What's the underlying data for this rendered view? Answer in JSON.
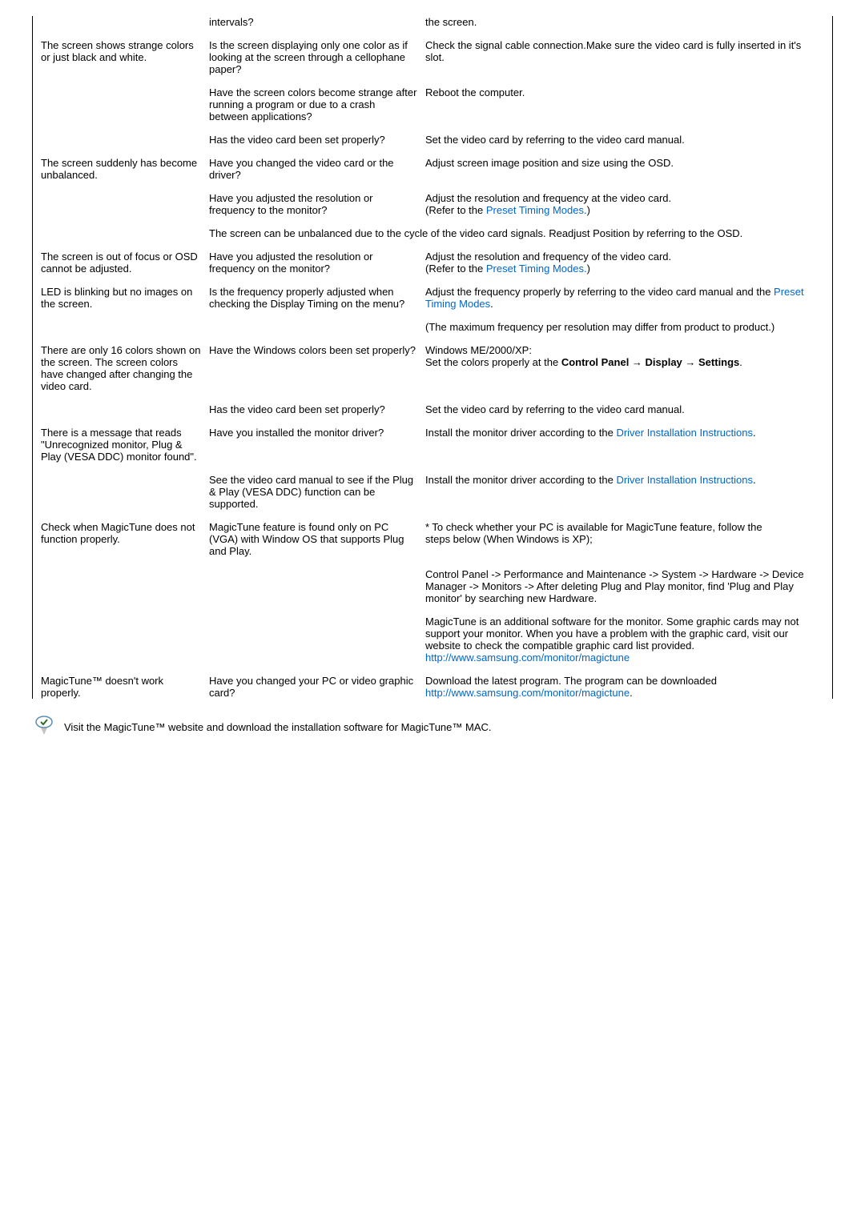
{
  "rows": [
    {
      "problem": "",
      "cause": "intervals?",
      "solution": "the screen."
    },
    {
      "problem": "The screen shows strange colors or just black and white.",
      "cause": "Is the screen displaying only one color as if looking at the screen through a cellophane paper?",
      "solution": "Check the signal cable connection.Make sure the video card is fully inserted in it's slot."
    },
    {
      "problem": "",
      "cause": "Have the screen colors become strange after running a program or due to a crash between applications?",
      "solution": "Reboot the computer."
    },
    {
      "problem": "",
      "cause": "Has the video card been set properly?",
      "solution": "Set the video card by referring to the video card manual."
    },
    {
      "problem": "The screen suddenly has become unbalanced.",
      "cause": "Have you changed the video card or the driver?",
      "solution": "Adjust screen image position and size using the OSD."
    },
    {
      "problem": "",
      "cause": "Have you adjusted the resolution or frequency to the monitor?",
      "solution": "Adjust the resolution and frequency at the video card.\n(Refer to the {link:Preset Timing Modes.})"
    },
    {
      "problem": "",
      "full": "The screen can be unbalanced due to the cycle of the video card signals. Readjust Position by referring to the OSD."
    },
    {
      "problem": "The screen is out of focus or OSD cannot be adjusted.",
      "cause": "Have you adjusted the resolution or frequency on the monitor?",
      "solution": "Adjust the resolution and frequency of the video card.\n(Refer to the {link:Preset Timing Modes.})"
    },
    {
      "problem": "LED is blinking but no images on the screen.",
      "cause": "Is the frequency properly adjusted when checking the Display Timing on the menu?",
      "solution": "Adjust the frequency properly by referring to the video card manual and the {link:Preset Timing Modes}."
    },
    {
      "problem": "",
      "cause": "",
      "solution": "(The maximum frequency per resolution may differ from product to product.)"
    },
    {
      "problem": "There are only 16 colors shown on the screen. The screen colors have changed after changing the video card.",
      "cause": "Have the Windows colors been set properly?",
      "solution": "Windows ME/2000/XP:\nSet the colors properly at the {bold:Control Panel → Display → Settings}."
    },
    {
      "problem": "",
      "cause": "Has the video card been set properly?",
      "solution": "Set the video card by referring to the video card manual."
    },
    {
      "problem": "There is a message that reads \"Unrecognized monitor, Plug & Play (VESA DDC) monitor found\".",
      "cause": "Have you installed the monitor driver?",
      "solution": "Install the monitor driver according to the {link:Driver Installation Instructions}."
    },
    {
      "problem": "",
      "cause": "See the video card manual to see if the Plug & Play (VESA DDC) function can be supported.",
      "solution": "Install the monitor driver according to the {link:Driver Installation Instructions}."
    },
    {
      "problem": "Check when MagicTune does not function properly.",
      "cause": "MagicTune feature is found only on PC (VGA) with Window OS that supports Plug and Play.",
      "solution": "* To check whether your PC is available for MagicTune feature, follow the\n steps below (When Windows is XP);"
    },
    {
      "problem": "",
      "cause": "",
      "solution": "Control Panel -> Performance and Maintenance -> System -> Hardware -> Device Manager -> Monitors -> After deleting Plug and Play monitor, find 'Plug and Play monitor' by searching new Hardware."
    },
    {
      "problem": "",
      "cause": "",
      "solution": "MagicTune is an additional software for the monitor. Some graphic cards may not support your monitor. When you have a problem with the graphic card, visit our website to check the compatible graphic card list provided.\n{link:http://www.samsung.com/monitor/magictune}"
    },
    {
      "problem": "MagicTune™ doesn't work properly.",
      "cause": "Have you changed your PC or video graphic card?",
      "solution": "Download the latest program. The program can be downloaded\n{link:http://www.samsung.com/monitor/magictune}."
    }
  ],
  "footer": "Visit the MagicTune™ website and download the installation software for MagicTune™ MAC."
}
